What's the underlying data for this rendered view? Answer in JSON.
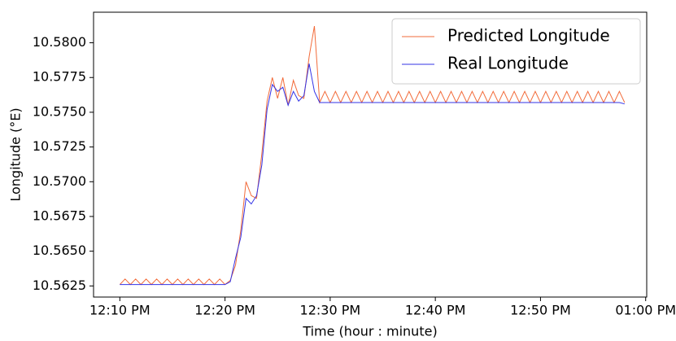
{
  "chart_data": {
    "type": "line",
    "xlabel": "Time (hour : minute)",
    "ylabel": "Longitude (°E)",
    "x": [
      10,
      10.5,
      11,
      11.5,
      12,
      12.5,
      13,
      13.5,
      14,
      14.5,
      15,
      15.5,
      16,
      16.5,
      17,
      17.5,
      18,
      18.5,
      19,
      19.5,
      20,
      20.5,
      21,
      21.5,
      22,
      22.5,
      23,
      23.5,
      24,
      24.5,
      25,
      25.5,
      26,
      26.5,
      27,
      27.5,
      28,
      28.5,
      29,
      29.5,
      30,
      30.5,
      31,
      31.5,
      32,
      32.5,
      33,
      33.5,
      34,
      34.5,
      35,
      35.5,
      36,
      36.5,
      37,
      37.5,
      38,
      38.5,
      39,
      39.5,
      40,
      40.5,
      41,
      41.5,
      42,
      42.5,
      43,
      43.5,
      44,
      44.5,
      45,
      45.5,
      46,
      46.5,
      47,
      47.5,
      48,
      48.5,
      49,
      49.5,
      50,
      50.5,
      51,
      51.5,
      52,
      52.5,
      53,
      53.5,
      54,
      54.5,
      55,
      55.5,
      56,
      56.5,
      57,
      57.5,
      58
    ],
    "series": [
      {
        "name": "Predicted Longitude",
        "color": "#f26b3a",
        "values": [
          10.5626,
          10.563,
          10.5626,
          10.563,
          10.5626,
          10.563,
          10.5626,
          10.563,
          10.5626,
          10.563,
          10.5626,
          10.563,
          10.5626,
          10.563,
          10.5626,
          10.563,
          10.5626,
          10.563,
          10.5626,
          10.563,
          10.5626,
          10.5629,
          10.564,
          10.5665,
          10.57,
          10.569,
          10.5688,
          10.572,
          10.5758,
          10.5775,
          10.576,
          10.5775,
          10.5755,
          10.5773,
          10.5762,
          10.576,
          10.579,
          10.5812,
          10.5757,
          10.5765,
          10.5757,
          10.5765,
          10.5757,
          10.5765,
          10.5757,
          10.5765,
          10.5757,
          10.5765,
          10.5757,
          10.5765,
          10.5757,
          10.5765,
          10.5757,
          10.5765,
          10.5757,
          10.5765,
          10.5757,
          10.5765,
          10.5757,
          10.5765,
          10.5757,
          10.5765,
          10.5757,
          10.5765,
          10.5757,
          10.5765,
          10.5757,
          10.5765,
          10.5757,
          10.5765,
          10.5757,
          10.5765,
          10.5757,
          10.5765,
          10.5757,
          10.5765,
          10.5757,
          10.5765,
          10.5757,
          10.5765,
          10.5757,
          10.5765,
          10.5757,
          10.5765,
          10.5757,
          10.5765,
          10.5757,
          10.5765,
          10.5757,
          10.5765,
          10.5757,
          10.5765,
          10.5757,
          10.5765,
          10.5757,
          10.5765,
          10.5757
        ]
      },
      {
        "name": "Real Longitude",
        "color": "#3333e6",
        "values": [
          10.5626,
          10.5626,
          10.5626,
          10.5626,
          10.5626,
          10.5626,
          10.5626,
          10.5626,
          10.5626,
          10.5626,
          10.5626,
          10.5626,
          10.5626,
          10.5626,
          10.5626,
          10.5626,
          10.5626,
          10.5626,
          10.5626,
          10.5626,
          10.5626,
          10.5628,
          10.5645,
          10.566,
          10.5688,
          10.5684,
          10.569,
          10.5712,
          10.5752,
          10.577,
          10.5765,
          10.5768,
          10.5755,
          10.5765,
          10.5758,
          10.5762,
          10.5785,
          10.5765,
          10.5757,
          10.5757,
          10.5757,
          10.5757,
          10.5757,
          10.5757,
          10.5757,
          10.5757,
          10.5757,
          10.5757,
          10.5757,
          10.5757,
          10.5757,
          10.5757,
          10.5757,
          10.5757,
          10.5757,
          10.5757,
          10.5757,
          10.5757,
          10.5757,
          10.5757,
          10.5757,
          10.5757,
          10.5757,
          10.5757,
          10.5757,
          10.5757,
          10.5757,
          10.5757,
          10.5757,
          10.5757,
          10.5757,
          10.5757,
          10.5757,
          10.5757,
          10.5757,
          10.5757,
          10.5757,
          10.5757,
          10.5757,
          10.5757,
          10.5757,
          10.5757,
          10.5757,
          10.5757,
          10.5757,
          10.5757,
          10.5757,
          10.5757,
          10.5757,
          10.5757,
          10.5757,
          10.5757,
          10.5757,
          10.5757,
          10.5757,
          10.5757,
          10.5756
        ]
      }
    ],
    "xlim": [
      7.5,
      60.1
    ],
    "xticks": [
      {
        "value": 10,
        "label": "12:10 PM"
      },
      {
        "value": 20,
        "label": "12:20 PM"
      },
      {
        "value": 30,
        "label": "12:30 PM"
      },
      {
        "value": 40,
        "label": "12:40 PM"
      },
      {
        "value": 50,
        "label": "12:50 PM"
      },
      {
        "value": 60,
        "label": "01:00 PM"
      }
    ],
    "ylim": [
      10.5617,
      10.5822
    ],
    "yticks": [
      10.5625,
      {
        "value": 10.565,
        "label": "10.5650"
      },
      10.5675,
      {
        "value": 10.57,
        "label": "10.5700"
      },
      10.5725,
      {
        "value": 10.575,
        "label": "10.5750"
      },
      10.5775,
      {
        "value": 10.58,
        "label": "10.5800"
      }
    ],
    "legend": "upper right",
    "grid": false
  }
}
